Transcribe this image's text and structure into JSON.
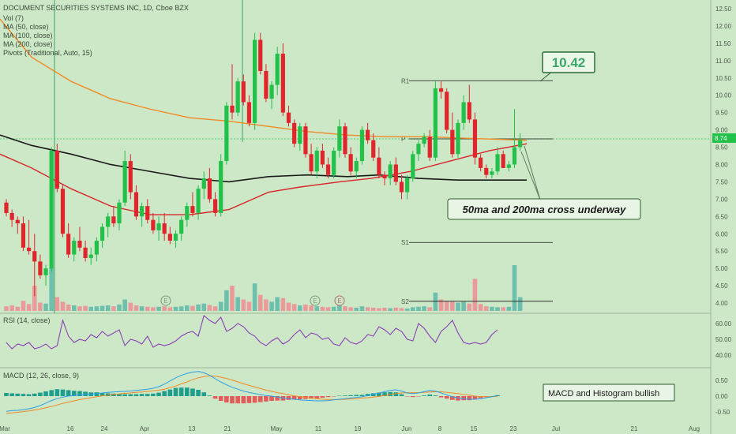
{
  "legend": {
    "title": "DOCUMENT SECURITIES SYSTEMS INC, 1D, Cboe BZX",
    "lines": [
      "Vol (7)",
      "MA (50, close)",
      "MA (100, close)",
      "MA (200, close)",
      "Pivots (Traditional, Auto, 15)"
    ]
  },
  "price_label": "8.74",
  "annotations": {
    "target_price": "10.42",
    "cross_note": "50ma and 200ma cross underway",
    "macd_note": "MACD and Histogram bullish"
  },
  "pivots": {
    "r1": "R1",
    "p": "P",
    "s1": "S1",
    "s2": "S2"
  },
  "rsi_label": "RSI (14, close)",
  "macd_label": "MACD (12, 26, close, 9)",
  "earnings_marker": "E",
  "colors": {
    "up": "#22c14a",
    "down": "#e0262c",
    "ma50": "#d8262c",
    "ma100": "#f08a26",
    "ma200": "#1a1a1a",
    "rsi": "#8a3fb8",
    "macd": "#2e9ee6",
    "signal": "#f08a26",
    "vol_up": "#6dbfae",
    "vol_down": "#ea9a9a"
  },
  "chart_data": {
    "type": "candlestick",
    "ylim": [
      3.75,
      12.75
    ],
    "price_axis": [
      "12.50",
      "12.00",
      "11.50",
      "11.00",
      "10.50",
      "10.00",
      "9.50",
      "9.00",
      "8.50",
      "8.00",
      "7.50",
      "7.00",
      "6.50",
      "6.00",
      "5.50",
      "5.00",
      "4.50",
      "4.00"
    ],
    "x_ticks": [
      "Mar",
      "16",
      "24",
      "Apr",
      "13",
      "21",
      "May",
      "11",
      "19",
      "Jun",
      "8",
      "15",
      "23",
      "Jul",
      "21",
      "Aug"
    ],
    "rsi": {
      "ylim": [
        33,
        65
      ],
      "axis": [
        "60.00",
        "50.00",
        "40.00"
      ],
      "values": [
        48,
        44,
        47,
        46,
        48,
        44,
        45,
        47,
        44,
        46,
        62,
        52,
        48,
        50,
        49,
        53,
        51,
        55,
        52,
        54,
        56,
        46,
        50,
        49,
        47,
        52,
        45,
        47,
        46,
        47,
        49,
        52,
        54,
        55,
        52,
        65,
        62,
        60,
        64,
        55,
        57,
        60,
        58,
        54,
        52,
        48,
        46,
        49,
        51,
        47,
        49,
        53,
        56,
        51,
        54,
        53,
        50,
        51,
        47,
        46,
        51,
        48,
        47,
        49,
        53,
        52,
        58,
        56,
        53,
        57,
        55,
        50,
        49,
        60,
        57,
        52,
        48,
        55,
        58,
        62,
        54,
        48,
        47,
        48,
        47,
        48,
        53,
        56
      ]
    },
    "macd": {
      "ylim": [
        -0.7,
        0.8
      ],
      "axis": [
        "0.50",
        "0.00",
        "-0.50"
      ],
      "macd": [
        -0.48,
        -0.46,
        -0.45,
        -0.43,
        -0.4,
        -0.36,
        -0.3,
        -0.22,
        -0.14,
        -0.08,
        -0.03,
        0.0,
        0.02,
        0.04,
        0.05,
        0.06,
        0.08,
        0.1,
        0.12,
        0.13,
        0.14,
        0.15,
        0.16,
        0.18,
        0.2,
        0.22,
        0.25,
        0.3,
        0.38,
        0.48,
        0.58,
        0.66,
        0.72,
        0.76,
        0.78,
        0.74,
        0.66,
        0.55,
        0.45,
        0.36,
        0.28,
        0.22,
        0.16,
        0.12,
        0.08,
        0.05,
        0.02,
        0.0,
        -0.03,
        -0.06,
        -0.08,
        -0.1,
        -0.12,
        -0.13,
        -0.14,
        -0.15,
        -0.15,
        -0.14,
        -0.12,
        -0.1,
        -0.08,
        -0.06,
        -0.04,
        -0.02,
        0.02,
        0.06,
        0.1,
        0.14,
        0.18,
        0.2,
        0.16,
        0.1,
        0.08,
        0.1,
        0.14,
        0.18,
        0.16,
        0.1,
        0.04,
        -0.02,
        -0.06,
        -0.08,
        -0.1,
        -0.1,
        -0.08,
        -0.05,
        -0.02,
        0.02
      ],
      "signal": [
        -0.55,
        -0.53,
        -0.51,
        -0.49,
        -0.47,
        -0.44,
        -0.41,
        -0.37,
        -0.33,
        -0.28,
        -0.23,
        -0.19,
        -0.15,
        -0.11,
        -0.08,
        -0.05,
        -0.02,
        0.01,
        0.03,
        0.05,
        0.07,
        0.09,
        0.1,
        0.12,
        0.13,
        0.15,
        0.17,
        0.19,
        0.22,
        0.27,
        0.32,
        0.39,
        0.45,
        0.52,
        0.58,
        0.62,
        0.64,
        0.63,
        0.6,
        0.56,
        0.51,
        0.45,
        0.39,
        0.34,
        0.29,
        0.24,
        0.19,
        0.15,
        0.11,
        0.08,
        0.04,
        0.01,
        -0.02,
        -0.04,
        -0.06,
        -0.08,
        -0.1,
        -0.11,
        -0.11,
        -0.11,
        -0.1,
        -0.09,
        -0.08,
        -0.06,
        -0.05,
        -0.03,
        -0.01,
        0.02,
        0.05,
        0.08,
        0.1,
        0.11,
        0.11,
        0.11,
        0.12,
        0.13,
        0.14,
        0.14,
        0.12,
        0.1,
        0.08,
        0.05,
        0.03,
        0.0,
        -0.02,
        -0.02,
        -0.02,
        -0.01
      ],
      "histogram": [
        0.1,
        0.09,
        0.08,
        0.07,
        0.06,
        0.08,
        0.11,
        0.15,
        0.19,
        0.22,
        0.21,
        0.19,
        0.17,
        0.16,
        0.14,
        0.12,
        0.12,
        0.1,
        0.09,
        0.08,
        0.07,
        0.06,
        0.06,
        0.06,
        0.07,
        0.07,
        0.08,
        0.11,
        0.16,
        0.21,
        0.26,
        0.27,
        0.27,
        0.24,
        0.2,
        0.12,
        0.02,
        -0.08,
        -0.15,
        -0.2,
        -0.23,
        -0.23,
        -0.23,
        -0.22,
        -0.21,
        -0.19,
        -0.17,
        -0.15,
        -0.14,
        -0.14,
        -0.12,
        -0.11,
        -0.1,
        -0.09,
        -0.08,
        -0.07,
        -0.05,
        -0.03,
        -0.01,
        0.01,
        0.02,
        0.03,
        0.04,
        0.04,
        0.07,
        0.09,
        0.11,
        0.12,
        0.13,
        0.12,
        0.06,
        -0.01,
        -0.03,
        -0.01,
        0.02,
        0.05,
        0.02,
        -0.04,
        -0.08,
        -0.12,
        -0.14,
        -0.13,
        -0.13,
        -0.1,
        -0.06,
        -0.03,
        0.0,
        0.03
      ]
    },
    "candles": [
      [
        6.9,
        7.0,
        6.5,
        6.6
      ],
      [
        6.6,
        6.7,
        6.2,
        6.4
      ],
      [
        6.4,
        6.5,
        6.0,
        6.3
      ],
      [
        6.3,
        6.5,
        5.5,
        5.6
      ],
      [
        5.6,
        6.4,
        5.4,
        5.5
      ],
      [
        5.5,
        6.0,
        4.2,
        5.2
      ],
      [
        5.2,
        5.4,
        4.7,
        4.8
      ],
      [
        4.8,
        5.1,
        4.5,
        5.0
      ],
      [
        5.0,
        8.5,
        4.9,
        8.4
      ],
      [
        8.4,
        8.6,
        7.2,
        7.3
      ],
      [
        7.3,
        7.4,
        5.9,
        6.0
      ],
      [
        6.0,
        6.3,
        5.3,
        5.4
      ],
      [
        5.4,
        5.9,
        5.2,
        5.8
      ],
      [
        5.8,
        6.2,
        5.5,
        5.6
      ],
      [
        5.6,
        5.8,
        5.2,
        5.3
      ],
      [
        5.3,
        5.6,
        5.1,
        5.4
      ],
      [
        5.4,
        5.9,
        5.2,
        5.8
      ],
      [
        5.8,
        6.3,
        5.6,
        6.2
      ],
      [
        6.2,
        6.6,
        5.9,
        6.5
      ],
      [
        6.5,
        6.8,
        6.2,
        6.3
      ],
      [
        6.3,
        7.0,
        6.1,
        6.9
      ],
      [
        6.9,
        8.4,
        6.8,
        8.1
      ],
      [
        8.1,
        8.3,
        7.0,
        7.2
      ],
      [
        7.2,
        7.4,
        6.4,
        6.5
      ],
      [
        6.5,
        6.9,
        6.2,
        6.8
      ],
      [
        6.8,
        7.0,
        6.3,
        6.4
      ],
      [
        6.4,
        6.6,
        6.0,
        6.1
      ],
      [
        6.1,
        6.5,
        5.8,
        6.3
      ],
      [
        6.3,
        6.6,
        5.8,
        6.0
      ],
      [
        6.0,
        6.2,
        5.7,
        5.8
      ],
      [
        5.8,
        6.1,
        5.6,
        6.0
      ],
      [
        6.0,
        6.5,
        5.8,
        6.4
      ],
      [
        6.4,
        6.9,
        6.2,
        6.8
      ],
      [
        6.8,
        7.2,
        6.5,
        6.6
      ],
      [
        6.6,
        7.4,
        6.4,
        7.3
      ],
      [
        7.3,
        7.8,
        7.0,
        7.6
      ],
      [
        7.6,
        7.9,
        6.9,
        7.0
      ],
      [
        7.0,
        7.2,
        6.5,
        6.6
      ],
      [
        6.6,
        8.3,
        6.5,
        8.1
      ],
      [
        8.1,
        9.8,
        8.0,
        9.7
      ],
      [
        9.7,
        10.9,
        9.3,
        9.5
      ],
      [
        9.5,
        10.5,
        9.4,
        10.4
      ],
      [
        10.4,
        10.6,
        9.7,
        9.8
      ],
      [
        9.8,
        10.0,
        9.1,
        9.2
      ],
      [
        9.2,
        11.8,
        9.0,
        11.6
      ],
      [
        11.6,
        11.8,
        10.6,
        10.7
      ],
      [
        10.7,
        10.9,
        9.8,
        9.9
      ],
      [
        9.9,
        10.4,
        9.6,
        10.3
      ],
      [
        10.3,
        11.4,
        10.0,
        11.2
      ],
      [
        11.2,
        11.5,
        9.4,
        9.5
      ],
      [
        9.5,
        9.7,
        9.1,
        9.2
      ],
      [
        9.2,
        9.3,
        8.5,
        8.6
      ],
      [
        8.6,
        9.2,
        8.4,
        9.1
      ],
      [
        9.1,
        9.2,
        8.2,
        8.3
      ],
      [
        8.3,
        8.6,
        7.7,
        7.8
      ],
      [
        7.8,
        8.5,
        7.6,
        8.4
      ],
      [
        8.4,
        8.6,
        7.9,
        8.0
      ],
      [
        8.0,
        8.2,
        7.6,
        7.7
      ],
      [
        7.7,
        8.5,
        7.6,
        8.4
      ],
      [
        8.4,
        9.3,
        8.2,
        9.1
      ],
      [
        9.1,
        9.2,
        8.2,
        8.3
      ],
      [
        8.3,
        8.5,
        7.7,
        7.8
      ],
      [
        7.8,
        8.2,
        7.6,
        8.1
      ],
      [
        8.1,
        9.1,
        8.0,
        9.0
      ],
      [
        9.0,
        9.2,
        8.6,
        8.7
      ],
      [
        8.7,
        8.9,
        8.1,
        8.2
      ],
      [
        8.2,
        8.5,
        7.6,
        7.7
      ],
      [
        7.7,
        7.8,
        7.4,
        7.6
      ],
      [
        7.6,
        8.1,
        7.4,
        8.0
      ],
      [
        8.0,
        8.2,
        7.4,
        7.5
      ],
      [
        7.5,
        7.7,
        7.0,
        7.2
      ],
      [
        7.2,
        7.7,
        7.0,
        7.6
      ],
      [
        7.6,
        8.4,
        7.5,
        8.3
      ],
      [
        8.3,
        8.7,
        8.1,
        8.6
      ],
      [
        8.6,
        8.9,
        8.5,
        8.8
      ],
      [
        8.8,
        9.0,
        8.1,
        8.2
      ],
      [
        8.2,
        10.4,
        8.1,
        10.2
      ],
      [
        10.2,
        10.4,
        9.9,
        10.1
      ],
      [
        10.1,
        10.2,
        8.9,
        9.0
      ],
      [
        9.0,
        9.5,
        8.2,
        8.3
      ],
      [
        8.3,
        9.3,
        8.2,
        9.2
      ],
      [
        9.2,
        10.0,
        9.0,
        9.8
      ],
      [
        9.8,
        10.3,
        9.2,
        9.3
      ],
      [
        9.3,
        9.5,
        8.0,
        8.2
      ],
      [
        8.2,
        8.3,
        7.8,
        7.9
      ],
      [
        7.9,
        8.0,
        7.6,
        7.7
      ],
      [
        7.7,
        7.9,
        7.6,
        7.8
      ],
      [
        7.8,
        8.5,
        7.7,
        8.3
      ],
      [
        8.3,
        8.4,
        7.9,
        7.9
      ],
      [
        7.9,
        8.1,
        7.8,
        8.0
      ],
      [
        8.0,
        9.6,
        7.9,
        8.5
      ],
      [
        8.5,
        8.9,
        8.4,
        8.7
      ]
    ],
    "volume": [
      0.1,
      0.12,
      0.09,
      0.22,
      0.15,
      0.55,
      0.18,
      0.16,
      0.95,
      0.3,
      0.2,
      0.14,
      0.12,
      0.1,
      0.11,
      0.09,
      0.1,
      0.11,
      0.12,
      0.1,
      0.14,
      0.25,
      0.18,
      0.12,
      0.1,
      0.09,
      0.08,
      0.09,
      0.1,
      0.08,
      0.09,
      0.1,
      0.12,
      0.11,
      0.14,
      0.16,
      0.13,
      0.1,
      0.2,
      0.45,
      0.55,
      0.3,
      0.25,
      0.2,
      0.6,
      0.35,
      0.25,
      0.2,
      0.3,
      0.28,
      0.18,
      0.15,
      0.12,
      0.14,
      0.12,
      0.1,
      0.09,
      0.08,
      0.09,
      0.12,
      0.1,
      0.08,
      0.07,
      0.1,
      0.08,
      0.07,
      0.06,
      0.07,
      0.06,
      0.07,
      0.06,
      0.05,
      0.08,
      0.09,
      0.1,
      0.08,
      0.4,
      0.25,
      0.22,
      0.2,
      0.18,
      0.2,
      0.16,
      0.7,
      0.15,
      0.1,
      0.09,
      0.08,
      0.08,
      0.09,
      1.0,
      0.3
    ]
  }
}
